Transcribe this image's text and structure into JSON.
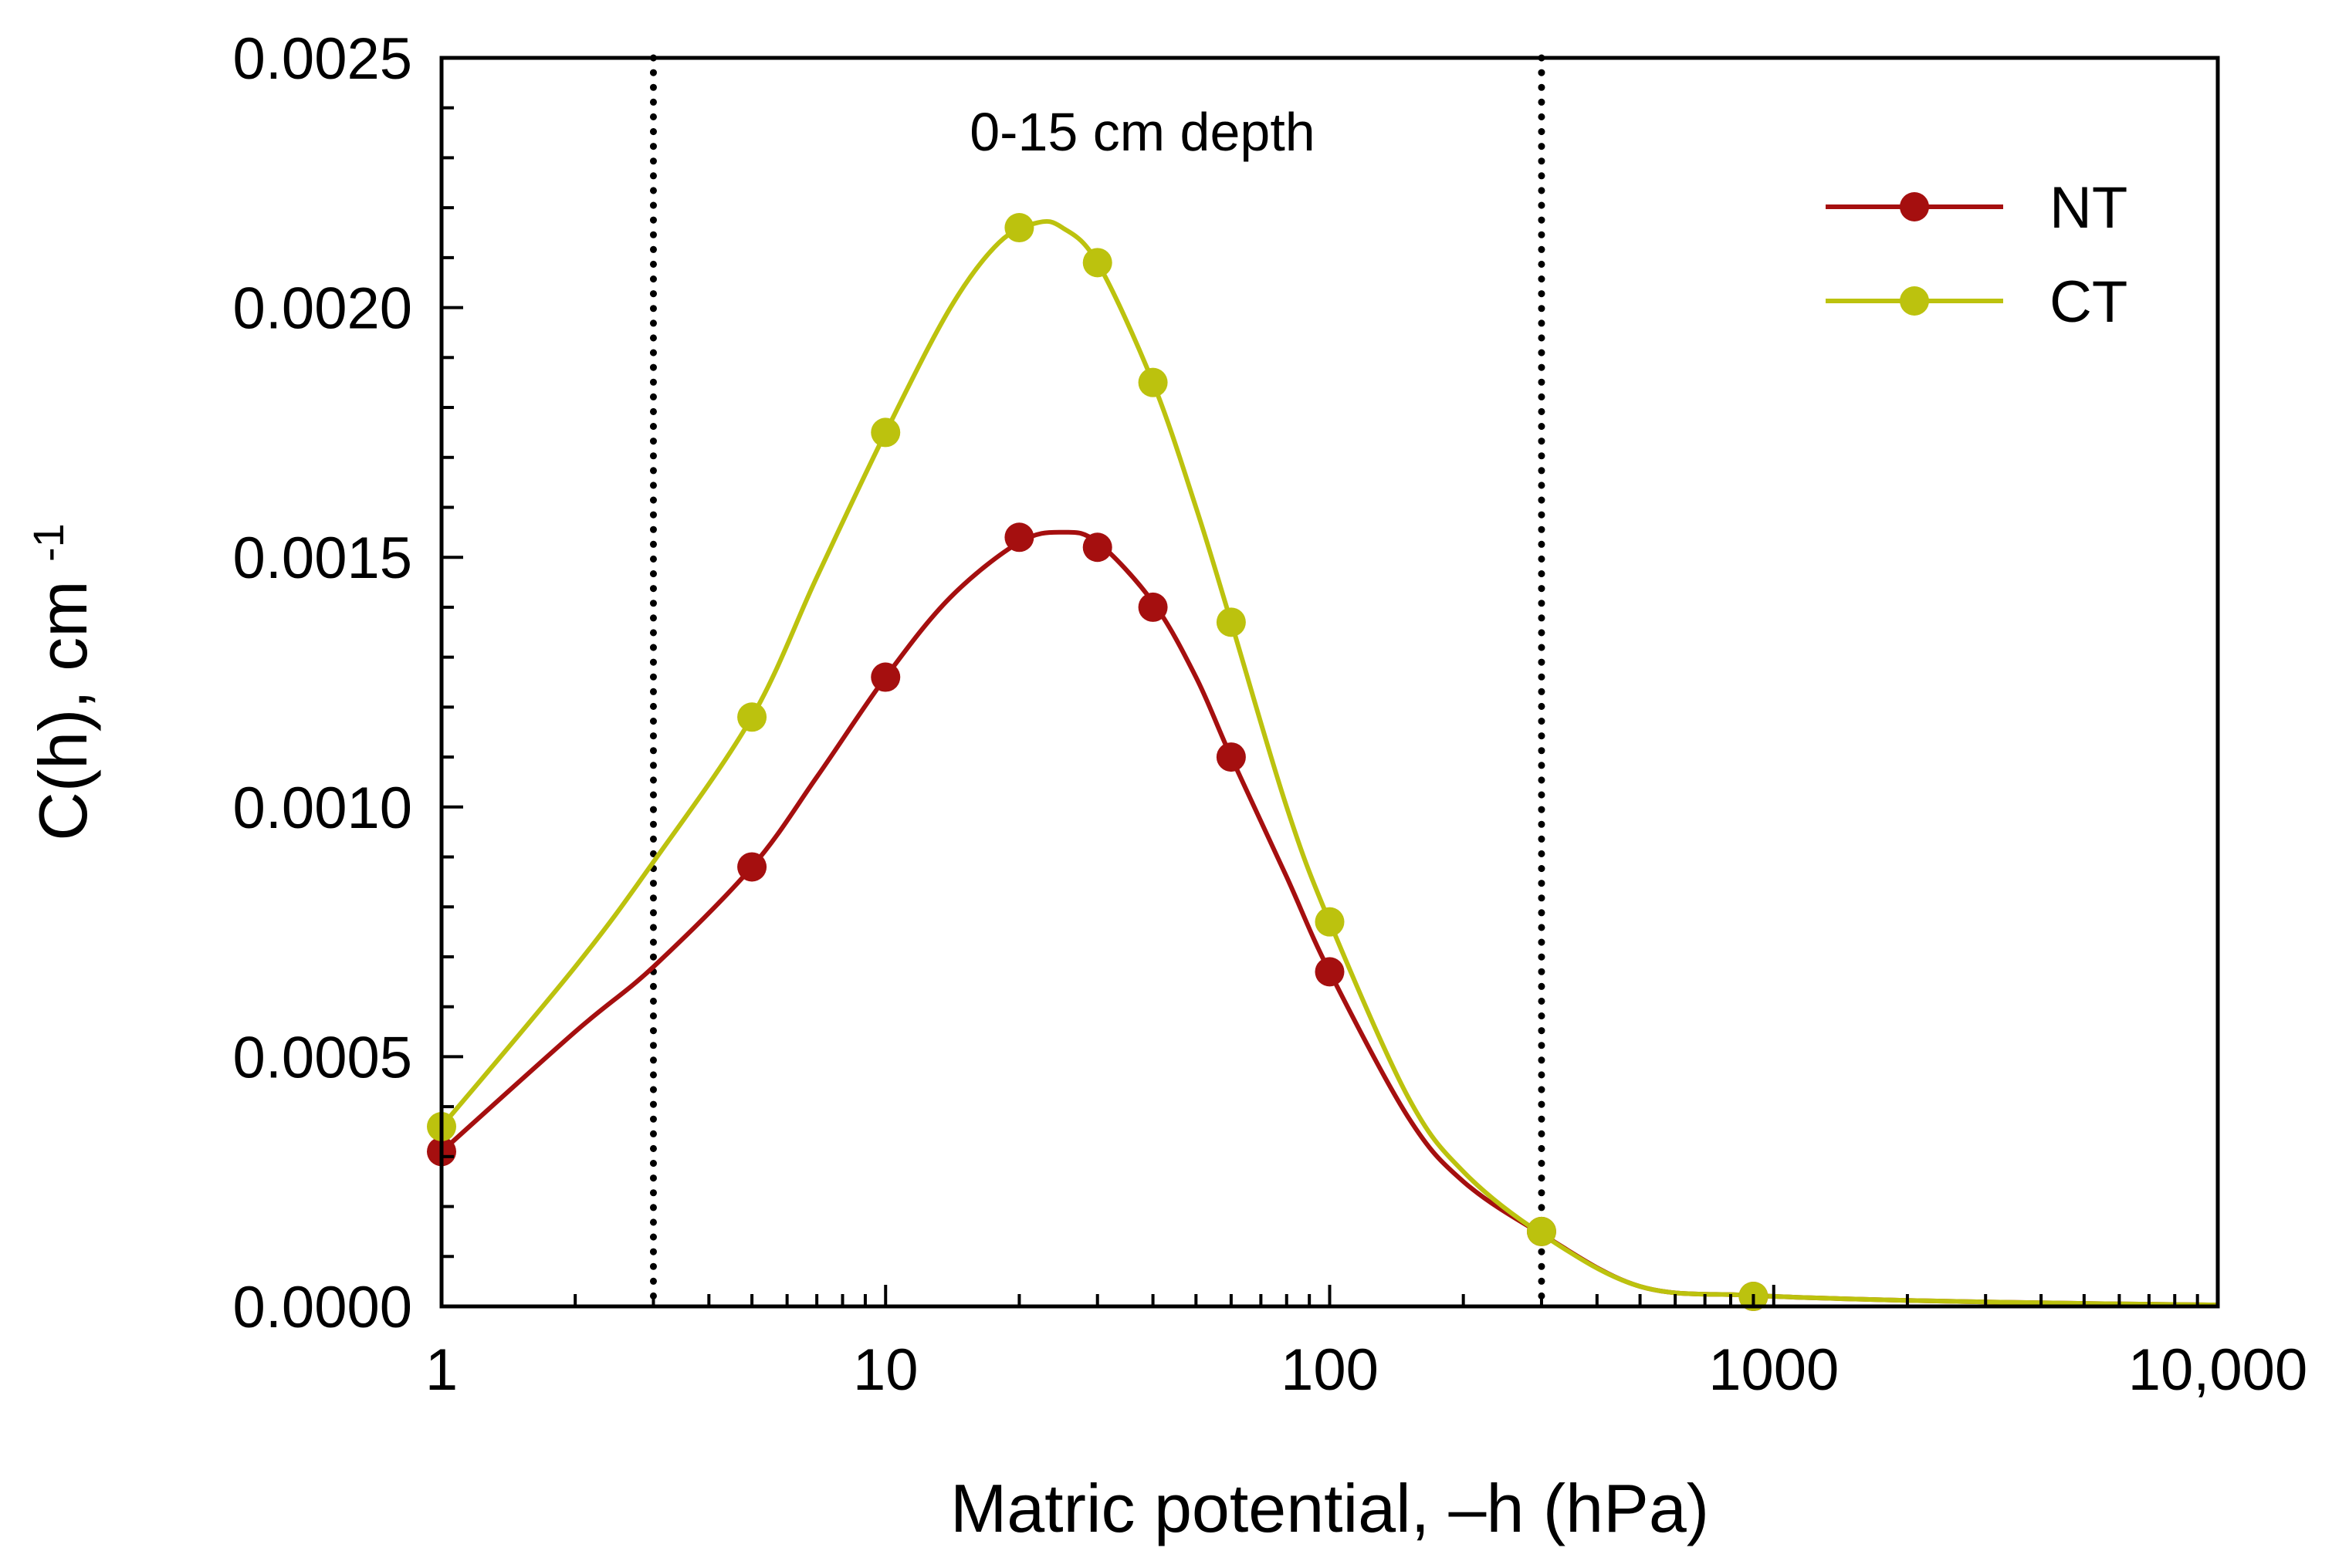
{
  "chart_data": {
    "type": "line",
    "title": "",
    "annotation": "0-15 cm depth",
    "xlabel": "Matric potential, –h (hPa)",
    "ylabel_main": "C(h), cm",
    "ylabel_sup": "-1",
    "xscale": "log",
    "xlim": [
      1,
      10000
    ],
    "ylim": [
      0,
      0.0025
    ],
    "x_ticks": [
      1,
      10,
      100,
      1000,
      10000
    ],
    "x_tick_labels": [
      "1",
      "10",
      "100",
      "1000",
      "10,000"
    ],
    "y_ticks": [
      0,
      0.0005,
      0.001,
      0.0015,
      0.002,
      0.0025
    ],
    "y_tick_labels": [
      "0.0000",
      "0.0005",
      "0.0010",
      "0.0015",
      "0.0020",
      "0.0025"
    ],
    "vertical_reference_lines": [
      3,
      300
    ],
    "legend_position": "top-right",
    "series": [
      {
        "name": "NT",
        "color": "#a50f0f",
        "points": {
          "x": [
            1,
            5,
            10,
            20,
            30,
            40,
            60,
            100,
            300,
            900
          ],
          "y": [
            0.00031,
            0.00088,
            0.00126,
            0.00154,
            0.00152,
            0.0014,
            0.0011,
            0.00067,
            0.00015,
            2e-05
          ]
        },
        "curve": {
          "x": [
            1,
            2,
            3,
            5,
            7,
            10,
            14,
            20,
            25,
            30,
            40,
            50,
            60,
            80,
            100,
            150,
            200,
            300,
            500,
            900,
            2000,
            5000,
            10000
          ],
          "y": [
            0.00031,
            0.00055,
            0.00068,
            0.00088,
            0.00106,
            0.00126,
            0.00142,
            0.00153,
            0.00155,
            0.00153,
            0.00141,
            0.00126,
            0.0011,
            0.00086,
            0.00067,
            0.00038,
            0.00025,
            0.000145,
            4e-05,
            2.2e-05,
            1.2e-05,
            6e-06,
            3e-06
          ]
        }
      },
      {
        "name": "CT",
        "color": "#bcc20e",
        "points": {
          "x": [
            1,
            5,
            10,
            20,
            30,
            40,
            60,
            100,
            300,
            900
          ],
          "y": [
            0.00036,
            0.00118,
            0.00175,
            0.00216,
            0.00209,
            0.00185,
            0.00137,
            0.00077,
            0.00015,
            2e-05
          ]
        },
        "curve": {
          "x": [
            1,
            2,
            3,
            5,
            7,
            10,
            14,
            18,
            22,
            25,
            30,
            40,
            50,
            60,
            80,
            100,
            150,
            200,
            300,
            500,
            900,
            2000,
            5000,
            10000
          ],
          "y": [
            0.00036,
            0.00068,
            0.00089,
            0.00118,
            0.00146,
            0.00175,
            0.002,
            0.00213,
            0.00217,
            0.00216,
            0.00209,
            0.00185,
            0.0016,
            0.00137,
            0.001,
            0.00077,
            0.00042,
            0.00027,
            0.000145,
            4e-05,
            2.2e-05,
            1.2e-05,
            6e-06,
            3e-06
          ]
        }
      }
    ]
  }
}
